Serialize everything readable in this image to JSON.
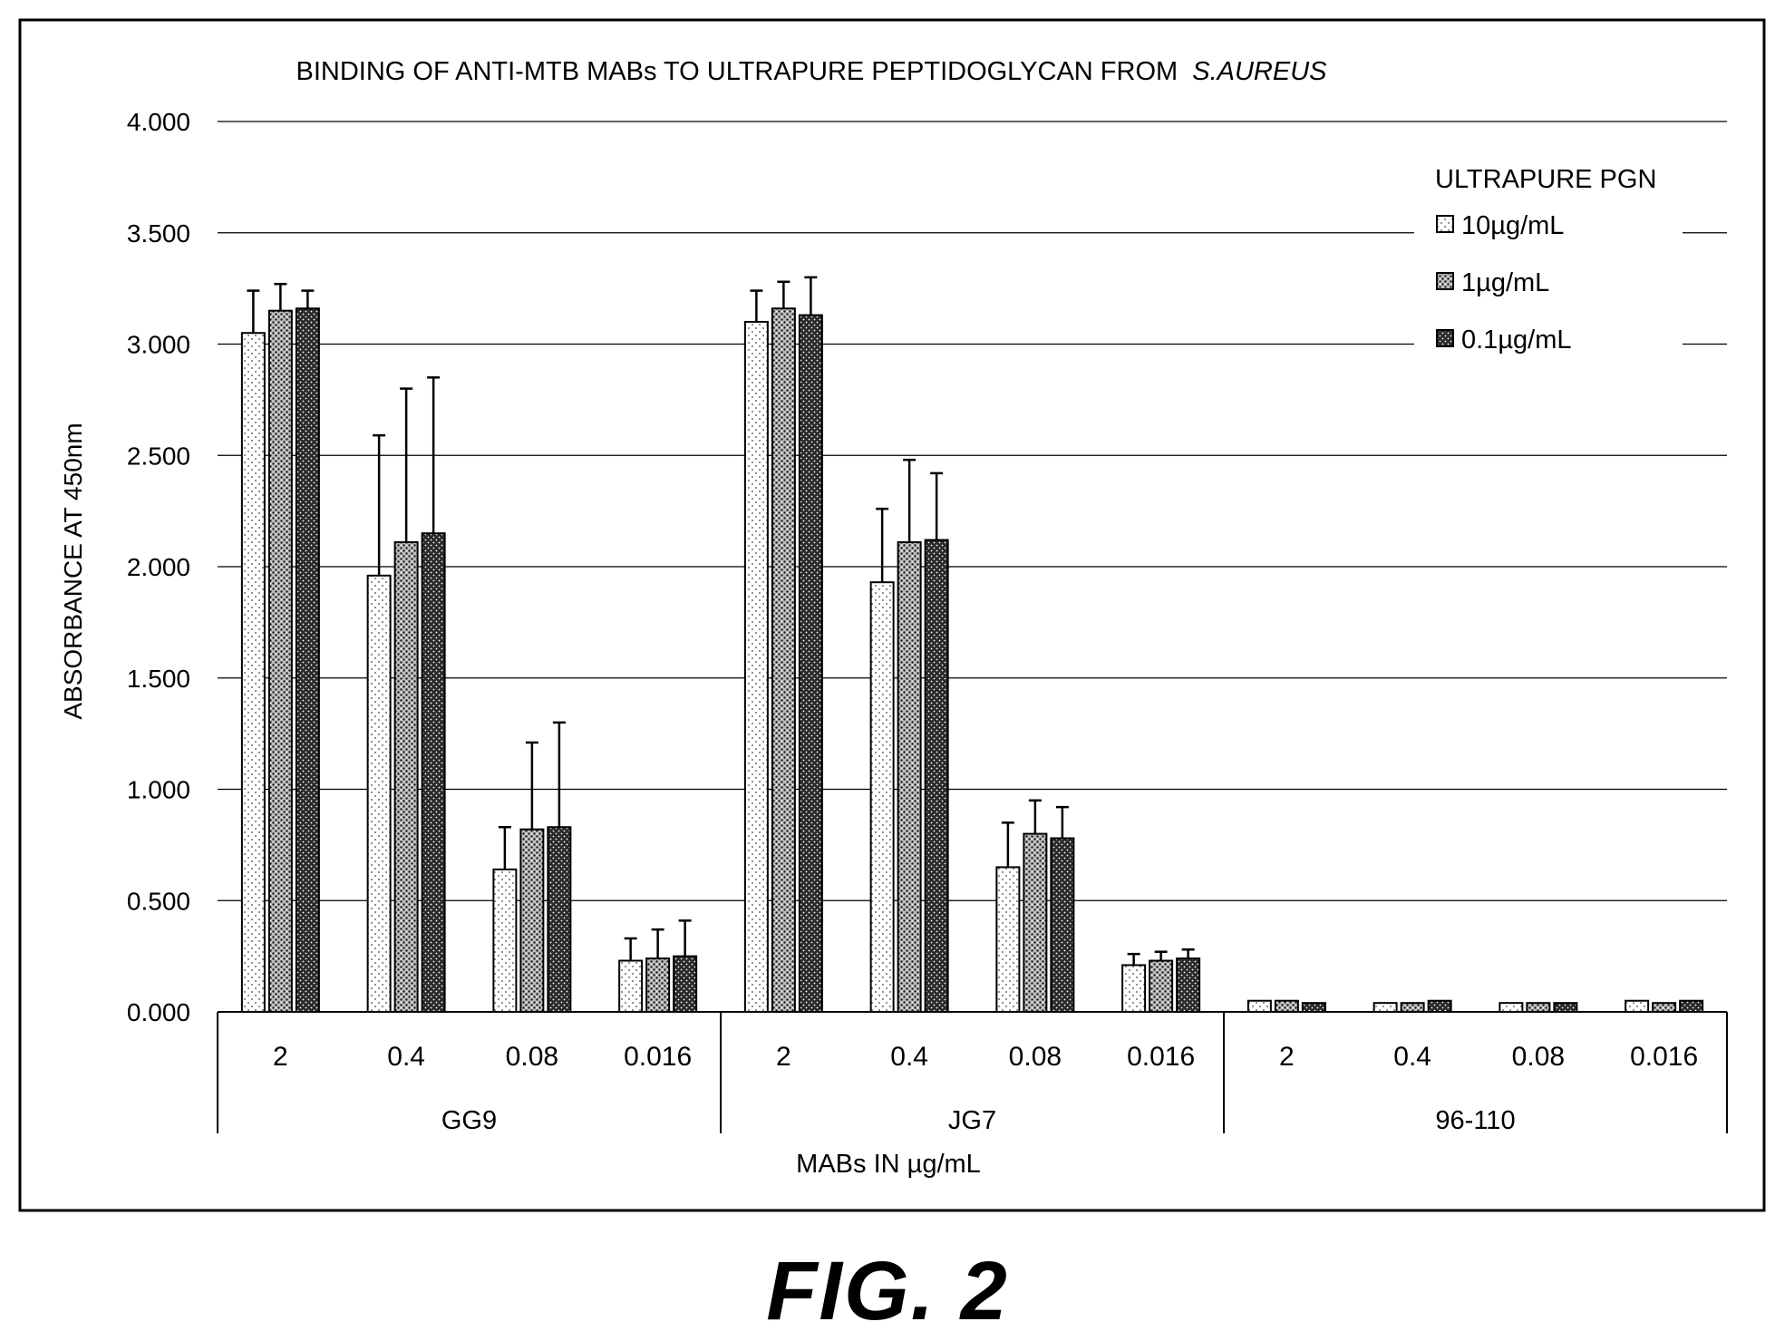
{
  "figure_label": "FIG. 2",
  "chart_data": {
    "type": "bar",
    "title": "BINDING OF ANTI-MTB MABs TO ULTRAPURE PEPTIDOGLYCAN FROM",
    "title_italic": "S.AUREUS",
    "xlabel": "MABs IN µg/mL",
    "ylabel": "ABSORBANCE AT 450nm",
    "ylim": [
      0,
      4
    ],
    "yticks": [
      "0.000",
      "0.500",
      "1.000",
      "1.500",
      "2.000",
      "2.500",
      "3.000",
      "3.500",
      "4.000"
    ],
    "grid": true,
    "legend_title": "ULTRAPURE PGN",
    "legend_position": "top-right",
    "groups": [
      "GG9",
      "JG7",
      "96-110"
    ],
    "concentrations": [
      "2",
      "0.4",
      "0.08",
      "0.016"
    ],
    "series": [
      {
        "name": "10µg/mL",
        "values": [
          3.05,
          1.96,
          0.64,
          0.23,
          3.1,
          1.93,
          0.65,
          0.21,
          0.05,
          0.04,
          0.04,
          0.05
        ],
        "errors": [
          0.19,
          0.63,
          0.19,
          0.1,
          0.14,
          0.33,
          0.2,
          0.05,
          0.0,
          0.0,
          0.0,
          0.0
        ]
      },
      {
        "name": "1µg/mL",
        "values": [
          3.15,
          2.11,
          0.82,
          0.24,
          3.16,
          2.11,
          0.8,
          0.23,
          0.05,
          0.04,
          0.04,
          0.04
        ],
        "errors": [
          0.12,
          0.69,
          0.39,
          0.13,
          0.12,
          0.37,
          0.15,
          0.04,
          0.0,
          0.0,
          0.0,
          0.0
        ]
      },
      {
        "name": "0.1µg/mL",
        "values": [
          3.16,
          2.15,
          0.83,
          0.25,
          3.13,
          2.12,
          0.78,
          0.24,
          0.04,
          0.05,
          0.04,
          0.05
        ],
        "errors": [
          0.08,
          0.7,
          0.47,
          0.16,
          0.17,
          0.3,
          0.14,
          0.04,
          0.0,
          0.0,
          0.0,
          0.0
        ]
      }
    ]
  }
}
